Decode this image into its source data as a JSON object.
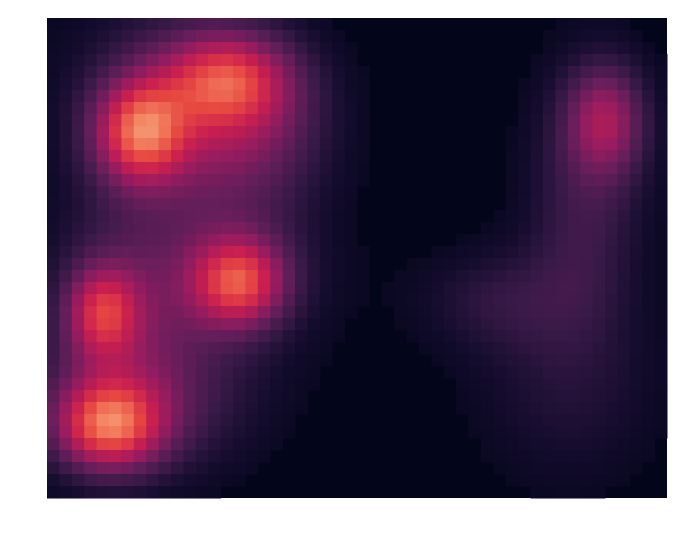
{
  "chart_data": {
    "type": "heatmap",
    "title": "",
    "xlabel": "",
    "ylabel": "",
    "colormap": "rocket",
    "background_color": "#03051A",
    "n_cols": 50,
    "n_rows": 40,
    "value_range": [
      0,
      1
    ],
    "blobs": [
      {
        "cx": 7.5,
        "cy": 9.5,
        "rx": 2.6,
        "ry": 3.0,
        "peak": 0.58
      },
      {
        "cx": 14.5,
        "cy": 5.0,
        "rx": 3.5,
        "ry": 2.6,
        "peak": 0.4
      },
      {
        "cx": 16.0,
        "cy": 9.0,
        "rx": 4.5,
        "ry": 4.5,
        "peak": 0.25
      },
      {
        "cx": 11.0,
        "cy": 7.0,
        "rx": 6.5,
        "ry": 6.5,
        "peak": 0.22
      },
      {
        "cx": 15.5,
        "cy": 22.0,
        "rx": 2.6,
        "ry": 2.6,
        "peak": 0.52
      },
      {
        "cx": 14.0,
        "cy": 21.0,
        "rx": 6.0,
        "ry": 5.0,
        "peak": 0.18
      },
      {
        "cx": 4.5,
        "cy": 24.5,
        "rx": 2.0,
        "ry": 2.6,
        "peak": 0.4
      },
      {
        "cx": 6.0,
        "cy": 25.0,
        "rx": 4.5,
        "ry": 6.5,
        "peak": 0.2
      },
      {
        "cx": 5.0,
        "cy": 34.0,
        "rx": 3.0,
        "ry": 2.6,
        "peak": 0.58
      },
      {
        "cx": 8.0,
        "cy": 32.0,
        "rx": 6.5,
        "ry": 4.5,
        "peak": 0.2
      },
      {
        "cx": 45.0,
        "cy": 8.5,
        "rx": 2.2,
        "ry": 3.2,
        "peak": 0.34
      },
      {
        "cx": 44.0,
        "cy": 11.0,
        "rx": 3.8,
        "ry": 6.5,
        "peak": 0.14
      },
      {
        "cx": 43.0,
        "cy": 19.0,
        "rx": 3.0,
        "ry": 5.5,
        "peak": 0.1
      },
      {
        "cx": 36.0,
        "cy": 23.5,
        "rx": 4.5,
        "ry": 3.0,
        "peak": 0.12
      },
      {
        "cx": 42.0,
        "cy": 30.0,
        "rx": 5.5,
        "ry": 6.5,
        "peak": 0.12
      }
    ]
  }
}
